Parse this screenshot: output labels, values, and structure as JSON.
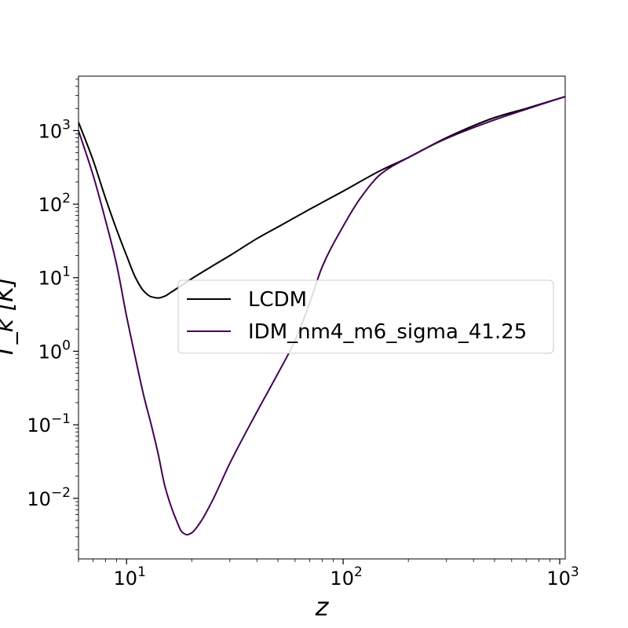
{
  "chart_data": {
    "type": "line",
    "title": "",
    "xlabel": "z",
    "ylabel": "T_k [K]",
    "xscale": "log",
    "yscale": "log",
    "xlim": [
      6,
      1060
    ],
    "ylim": [
      0.0015,
      5500
    ],
    "x_ticks": [
      {
        "value": 10,
        "base": "10",
        "exp": "1"
      },
      {
        "value": 100,
        "base": "10",
        "exp": "2"
      },
      {
        "value": 1000,
        "base": "10",
        "exp": "3"
      }
    ],
    "y_ticks": [
      {
        "value": 0.01,
        "base": "10",
        "exp": "−2"
      },
      {
        "value": 0.1,
        "base": "10",
        "exp": "−1"
      },
      {
        "value": 1,
        "base": "10",
        "exp": "0"
      },
      {
        "value": 10,
        "base": "10",
        "exp": "1"
      },
      {
        "value": 100,
        "base": "10",
        "exp": "2"
      },
      {
        "value": 1000,
        "base": "10",
        "exp": "3"
      }
    ],
    "legend": {
      "position": "center-right",
      "entries": [
        "LCDM",
        "IDM_nm4_m6_sigma_41.25"
      ]
    },
    "series": [
      {
        "name": "LCDM",
        "color": "#000000",
        "x": [
          6,
          7,
          8,
          9,
          10,
          11,
          12,
          13,
          14,
          15,
          16,
          18,
          20,
          25,
          30,
          40,
          50,
          70,
          100,
          150,
          200,
          300,
          500,
          700,
          1060
        ],
        "y": [
          1300,
          400,
          120,
          45,
          20,
          10,
          6.6,
          5.5,
          5.3,
          5.6,
          6.3,
          7.9,
          9.7,
          14.5,
          20,
          34,
          49,
          85,
          150,
          290,
          430,
          800,
          1500,
          2000,
          2900
        ]
      },
      {
        "name": "IDM_nm4_m6_sigma_41.25",
        "color": "#440154",
        "x": [
          6,
          7,
          8,
          9,
          10,
          11,
          12,
          13,
          14,
          15,
          16,
          17,
          18,
          19,
          20,
          22,
          25,
          30,
          40,
          50,
          60,
          70,
          80,
          100,
          120,
          150,
          200,
          300,
          500,
          700,
          1060
        ],
        "y": [
          1000,
          250,
          60,
          15,
          3,
          0.8,
          0.25,
          0.1,
          0.04,
          0.015,
          0.008,
          0.005,
          0.0035,
          0.0032,
          0.0034,
          0.0048,
          0.0095,
          0.03,
          0.15,
          0.5,
          1.4,
          4.5,
          14,
          50,
          120,
          260,
          430,
          780,
          1400,
          1950,
          2900
        ]
      }
    ]
  }
}
